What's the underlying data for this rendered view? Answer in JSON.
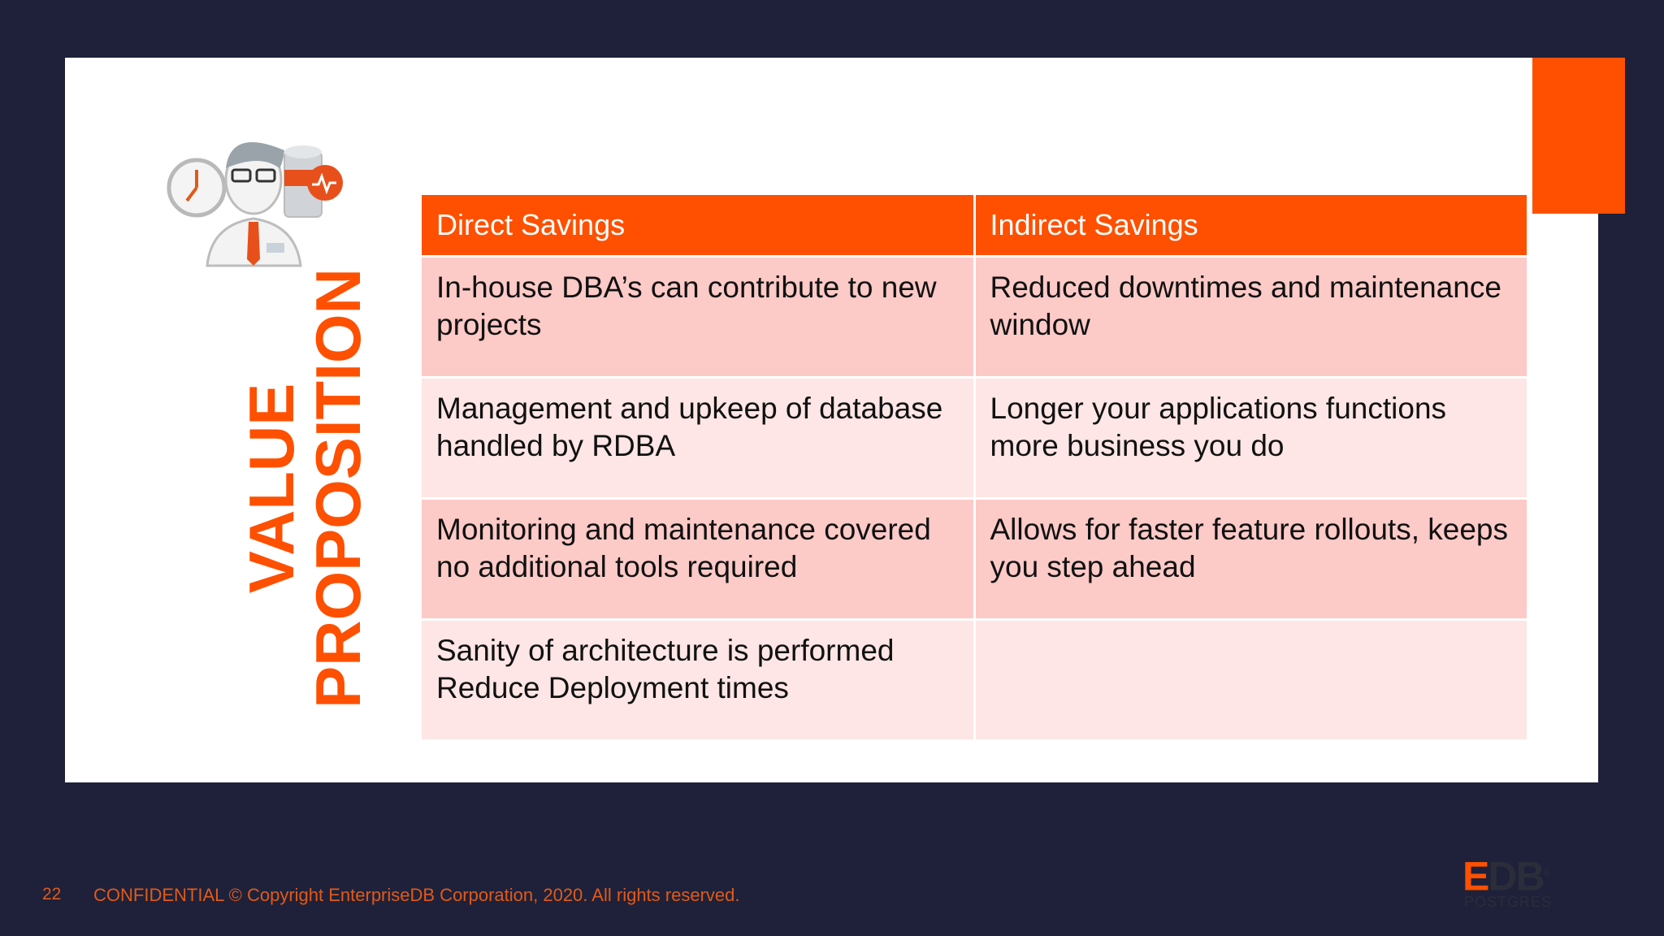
{
  "slide": {
    "title_line1": "VALUE",
    "title_line2": "PROPOSITION",
    "accent_color": "#fe5000",
    "background_color": "#1e2139"
  },
  "table": {
    "headers": [
      "Direct Savings",
      "Indirect Savings"
    ],
    "rows": [
      [
        "In-house DBA’s can contribute to new projects",
        "Reduced downtimes and maintenance window"
      ],
      [
        "Management and upkeep of database handled by RDBA",
        "Longer your applications functions more business you do"
      ],
      [
        "Monitoring and maintenance covered no additional tools required",
        "Allows for faster feature rollouts, keeps you step ahead"
      ],
      [
        "Sanity of architecture is performed Reduce Deployment times",
        ""
      ]
    ]
  },
  "footer": {
    "page_number": "22",
    "copyright": "CONFIDENTIAL © Copyright EnterpriseDB Corporation, 2020. All rights reserved."
  },
  "logo": {
    "edb_prefix": "E",
    "edb_rest": "DB",
    "edb_mark": "®",
    "tagline": "POSTGRES"
  },
  "icons": [
    "clock-icon",
    "dba-person-icon",
    "database-monitor-icon"
  ]
}
